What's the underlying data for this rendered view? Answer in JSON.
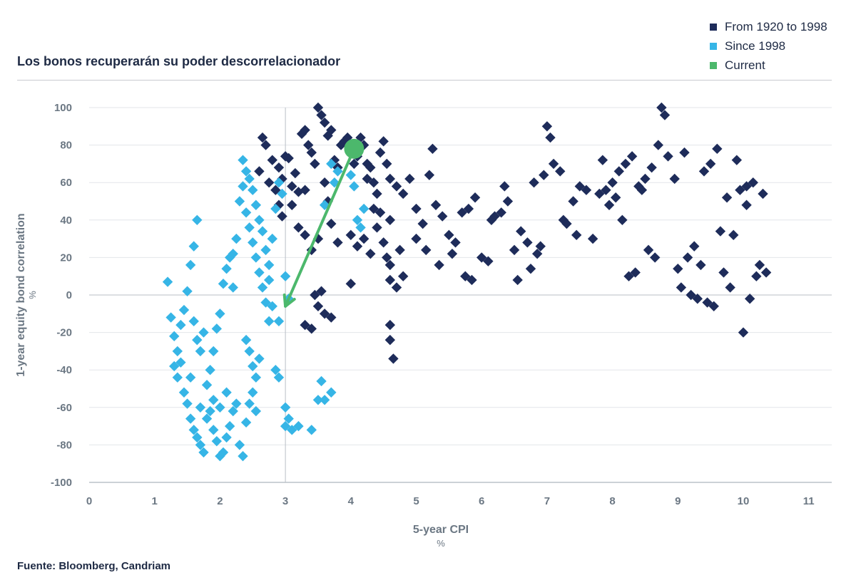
{
  "title": "Los bonos recuperarán su poder descorrelacionador",
  "source": "Fuente: Bloomberg, Candriam",
  "colors": {
    "series1": "#1e2c5a",
    "series2": "#36b5e6",
    "current": "#4cb86c",
    "text": "#1e2a44",
    "axis": "#6b7783",
    "grid": "#e3e6ea"
  },
  "legend": [
    {
      "label": "From 1920 to 1998",
      "color": "#1e2c5a"
    },
    {
      "label": "Since 1998",
      "color": "#36b5e6"
    },
    {
      "label": "Current",
      "color": "#4cb86c"
    }
  ],
  "chart_data": {
    "type": "scatter",
    "title": "Los bonos recuperarán su poder descorrelacionador",
    "xlabel": "5-year CPI",
    "xunit": "%",
    "ylabel": "1-year equity bond correlation",
    "yunit": "%",
    "xlim": [
      0,
      11
    ],
    "ylim": [
      -100,
      100
    ],
    "xticks": [
      0,
      1,
      2,
      3,
      4,
      5,
      6,
      7,
      8,
      9,
      10,
      11
    ],
    "yticks": [
      -100,
      -80,
      -60,
      -40,
      -20,
      0,
      20,
      40,
      60,
      80,
      100
    ],
    "grid": true,
    "legend_position": "top-right",
    "reference_vline": 3,
    "series": [
      {
        "name": "From 1920 to 1998",
        "marker": "diamond",
        "points": [
          [
            2.65,
            84
          ],
          [
            2.7,
            80
          ],
          [
            2.8,
            72
          ],
          [
            2.9,
            68
          ],
          [
            2.95,
            62
          ],
          [
            3.0,
            74
          ],
          [
            3.05,
            73
          ],
          [
            3.1,
            58
          ],
          [
            3.15,
            65
          ],
          [
            3.2,
            55
          ],
          [
            3.25,
            86
          ],
          [
            3.3,
            88
          ],
          [
            3.35,
            80
          ],
          [
            3.4,
            76
          ],
          [
            3.45,
            70
          ],
          [
            3.5,
            100
          ],
          [
            3.55,
            96
          ],
          [
            3.6,
            92
          ],
          [
            3.65,
            85
          ],
          [
            3.7,
            88
          ],
          [
            3.75,
            72
          ],
          [
            3.8,
            68
          ],
          [
            3.85,
            80
          ],
          [
            3.9,
            82
          ],
          [
            3.95,
            84
          ],
          [
            4.0,
            76
          ],
          [
            4.05,
            70
          ],
          [
            4.1,
            74
          ],
          [
            4.15,
            84
          ],
          [
            4.2,
            80
          ],
          [
            4.25,
            70
          ],
          [
            4.3,
            68
          ],
          [
            4.35,
            60
          ],
          [
            4.4,
            54
          ],
          [
            4.45,
            76
          ],
          [
            4.5,
            82
          ],
          [
            4.55,
            70
          ],
          [
            4.6,
            62
          ],
          [
            4.7,
            58
          ],
          [
            4.8,
            54
          ],
          [
            3.2,
            36
          ],
          [
            3.3,
            32
          ],
          [
            3.4,
            24
          ],
          [
            3.5,
            30
          ],
          [
            3.7,
            38
          ],
          [
            3.8,
            28
          ],
          [
            4.0,
            32
          ],
          [
            4.1,
            26
          ],
          [
            4.2,
            30
          ],
          [
            4.3,
            22
          ],
          [
            4.4,
            36
          ],
          [
            4.5,
            28
          ],
          [
            4.55,
            20
          ],
          [
            4.6,
            16
          ],
          [
            3.45,
            0
          ],
          [
            3.5,
            -6
          ],
          [
            3.55,
            2
          ],
          [
            3.3,
            -16
          ],
          [
            3.4,
            -18
          ],
          [
            3.6,
            -10
          ],
          [
            3.7,
            -12
          ],
          [
            4.0,
            6
          ],
          [
            4.6,
            -16
          ],
          [
            4.6,
            -24
          ],
          [
            4.65,
            -34
          ],
          [
            4.6,
            8
          ],
          [
            4.7,
            4
          ],
          [
            2.6,
            66
          ],
          [
            2.75,
            60
          ],
          [
            2.85,
            56
          ],
          [
            2.9,
            48
          ],
          [
            2.95,
            42
          ],
          [
            3.1,
            48
          ],
          [
            3.3,
            56
          ],
          [
            3.6,
            60
          ],
          [
            3.65,
            50
          ],
          [
            4.25,
            62
          ],
          [
            4.35,
            46
          ],
          [
            4.45,
            44
          ],
          [
            4.6,
            40
          ],
          [
            4.75,
            24
          ],
          [
            4.9,
            62
          ],
          [
            5.0,
            46
          ],
          [
            5.1,
            38
          ],
          [
            5.2,
            64
          ],
          [
            5.25,
            78
          ],
          [
            5.3,
            48
          ],
          [
            5.4,
            42
          ],
          [
            5.5,
            32
          ],
          [
            5.6,
            28
          ],
          [
            5.7,
            44
          ],
          [
            5.8,
            46
          ],
          [
            5.9,
            52
          ],
          [
            6.0,
            20
          ],
          [
            6.1,
            18
          ],
          [
            6.2,
            42
          ],
          [
            6.3,
            44
          ],
          [
            6.35,
            58
          ],
          [
            6.5,
            24
          ],
          [
            6.6,
            34
          ],
          [
            6.7,
            28
          ],
          [
            6.8,
            60
          ],
          [
            6.85,
            22
          ],
          [
            6.9,
            26
          ],
          [
            6.95,
            64
          ],
          [
            7.0,
            90
          ],
          [
            7.05,
            84
          ],
          [
            7.1,
            70
          ],
          [
            7.2,
            66
          ],
          [
            7.25,
            40
          ],
          [
            7.3,
            38
          ],
          [
            7.4,
            50
          ],
          [
            7.5,
            58
          ],
          [
            7.6,
            56
          ],
          [
            7.7,
            30
          ],
          [
            7.8,
            54
          ],
          [
            7.85,
            72
          ],
          [
            7.9,
            56
          ],
          [
            7.95,
            48
          ],
          [
            8.0,
            60
          ],
          [
            8.05,
            52
          ],
          [
            8.1,
            66
          ],
          [
            8.15,
            40
          ],
          [
            8.2,
            70
          ],
          [
            8.3,
            74
          ],
          [
            8.4,
            58
          ],
          [
            8.5,
            62
          ],
          [
            8.6,
            68
          ],
          [
            8.7,
            80
          ],
          [
            8.75,
            100
          ],
          [
            8.8,
            96
          ],
          [
            8.85,
            74
          ],
          [
            8.95,
            62
          ],
          [
            9.0,
            14
          ],
          [
            9.05,
            4
          ],
          [
            9.1,
            76
          ],
          [
            9.15,
            20
          ],
          [
            9.2,
            0
          ],
          [
            9.25,
            26
          ],
          [
            9.3,
            -2
          ],
          [
            9.4,
            66
          ],
          [
            9.5,
            70
          ],
          [
            9.6,
            78
          ],
          [
            9.7,
            12
          ],
          [
            9.75,
            52
          ],
          [
            9.8,
            4
          ],
          [
            9.85,
            32
          ],
          [
            9.9,
            72
          ],
          [
            9.95,
            56
          ],
          [
            10.0,
            -20
          ],
          [
            10.05,
            58
          ],
          [
            10.1,
            -2
          ],
          [
            10.15,
            60
          ],
          [
            10.2,
            10
          ],
          [
            10.25,
            16
          ],
          [
            10.3,
            54
          ],
          [
            10.35,
            12
          ],
          [
            5.0,
            30
          ],
          [
            5.15,
            24
          ],
          [
            5.35,
            16
          ],
          [
            5.55,
            22
          ],
          [
            5.75,
            10
          ],
          [
            5.85,
            8
          ],
          [
            6.15,
            40
          ],
          [
            6.4,
            50
          ],
          [
            6.55,
            8
          ],
          [
            6.75,
            14
          ],
          [
            7.45,
            32
          ],
          [
            8.25,
            10
          ],
          [
            8.35,
            12
          ],
          [
            8.45,
            56
          ],
          [
            8.55,
            24
          ],
          [
            8.65,
            20
          ],
          [
            9.35,
            16
          ],
          [
            9.45,
            -4
          ],
          [
            9.55,
            -6
          ],
          [
            9.65,
            34
          ],
          [
            10.05,
            48
          ],
          [
            4.8,
            10
          ]
        ]
      },
      {
        "name": "Since 1998",
        "marker": "diamond",
        "points": [
          [
            1.2,
            7
          ],
          [
            1.25,
            -12
          ],
          [
            1.3,
            -22
          ],
          [
            1.35,
            -30
          ],
          [
            1.4,
            -16
          ],
          [
            1.45,
            -8
          ],
          [
            1.5,
            2
          ],
          [
            1.55,
            16
          ],
          [
            1.6,
            26
          ],
          [
            1.65,
            40
          ],
          [
            1.4,
            -36
          ],
          [
            1.45,
            -52
          ],
          [
            1.5,
            -58
          ],
          [
            1.55,
            -66
          ],
          [
            1.6,
            -72
          ],
          [
            1.65,
            -76
          ],
          [
            1.7,
            -80
          ],
          [
            1.75,
            -84
          ],
          [
            1.8,
            -66
          ],
          [
            1.85,
            -62
          ],
          [
            1.9,
            -72
          ],
          [
            1.95,
            -78
          ],
          [
            2.0,
            -86
          ],
          [
            2.05,
            -84
          ],
          [
            2.1,
            -76
          ],
          [
            2.15,
            -70
          ],
          [
            2.2,
            -62
          ],
          [
            2.25,
            -58
          ],
          [
            2.3,
            -80
          ],
          [
            2.35,
            -86
          ],
          [
            2.4,
            -68
          ],
          [
            2.45,
            -58
          ],
          [
            2.5,
            -52
          ],
          [
            2.55,
            -62
          ],
          [
            1.8,
            -48
          ],
          [
            1.85,
            -40
          ],
          [
            1.9,
            -30
          ],
          [
            1.95,
            -18
          ],
          [
            2.0,
            -10
          ],
          [
            2.05,
            6
          ],
          [
            2.1,
            14
          ],
          [
            2.15,
            20
          ],
          [
            2.2,
            4
          ],
          [
            2.25,
            30
          ],
          [
            2.3,
            50
          ],
          [
            2.35,
            58
          ],
          [
            2.4,
            44
          ],
          [
            2.45,
            36
          ],
          [
            2.5,
            28
          ],
          [
            2.55,
            20
          ],
          [
            2.6,
            12
          ],
          [
            2.65,
            4
          ],
          [
            2.7,
            -4
          ],
          [
            2.75,
            -14
          ],
          [
            2.8,
            30
          ],
          [
            2.85,
            46
          ],
          [
            2.9,
            60
          ],
          [
            2.95,
            54
          ],
          [
            3.0,
            10
          ],
          [
            3.05,
            -2
          ],
          [
            2.4,
            -24
          ],
          [
            2.45,
            -30
          ],
          [
            2.5,
            -38
          ],
          [
            2.55,
            -44
          ],
          [
            2.6,
            -34
          ],
          [
            2.35,
            72
          ],
          [
            2.4,
            66
          ],
          [
            2.45,
            62
          ],
          [
            2.5,
            56
          ],
          [
            2.55,
            48
          ],
          [
            2.6,
            40
          ],
          [
            2.65,
            34
          ],
          [
            2.7,
            24
          ],
          [
            2.75,
            16
          ],
          [
            1.6,
            -14
          ],
          [
            1.65,
            -24
          ],
          [
            1.7,
            -30
          ],
          [
            1.75,
            -20
          ],
          [
            1.3,
            -38
          ],
          [
            1.35,
            -44
          ],
          [
            3.0,
            -60
          ],
          [
            3.05,
            -66
          ],
          [
            3.1,
            -72
          ],
          [
            3.2,
            -70
          ],
          [
            3.4,
            -72
          ],
          [
            3.5,
            -56
          ],
          [
            3.55,
            -46
          ],
          [
            3.6,
            -56
          ],
          [
            3.7,
            -52
          ],
          [
            2.8,
            -6
          ],
          [
            2.85,
            -40
          ],
          [
            2.9,
            -44
          ],
          [
            2.75,
            8
          ],
          [
            2.9,
            -14
          ],
          [
            3.0,
            -70
          ],
          [
            3.8,
            66
          ],
          [
            4.0,
            64
          ],
          [
            4.05,
            58
          ],
          [
            4.1,
            40
          ],
          [
            4.15,
            36
          ],
          [
            4.2,
            46
          ],
          [
            3.6,
            48
          ],
          [
            3.7,
            70
          ],
          [
            3.75,
            60
          ],
          [
            2.2,
            22
          ],
          [
            2.1,
            -52
          ],
          [
            2.0,
            -60
          ],
          [
            1.9,
            -56
          ],
          [
            1.7,
            -60
          ],
          [
            1.55,
            -44
          ]
        ]
      }
    ],
    "current": {
      "name": "Current",
      "x": 4.05,
      "y": 78,
      "arrow_to": [
        3.0,
        -6
      ]
    }
  }
}
